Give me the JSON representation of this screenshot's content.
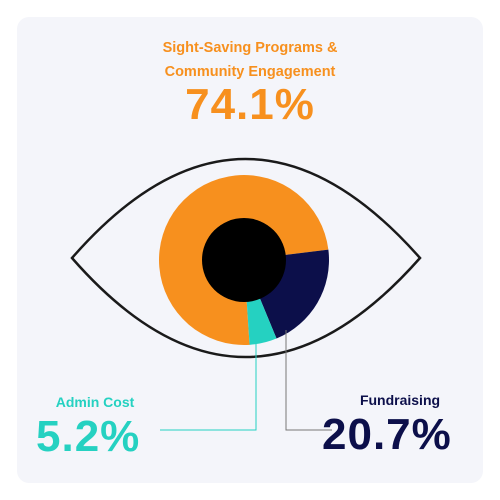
{
  "chart_data": {
    "type": "pie",
    "categories": [
      "Sight-Saving Programs & Community Engagement",
      "Fundraising",
      "Admin Cost"
    ],
    "values": [
      74.1,
      20.7,
      5.2
    ],
    "value_labels": [
      "74.1%",
      "20.7%",
      "5.2%"
    ],
    "colors": [
      "#f7901e",
      "#0c0f4a",
      "#25d1c1"
    ],
    "title": "",
    "label_lines": [
      "Sight-Saving Programs &",
      "Community Engagement"
    ]
  },
  "colors": {
    "card_background": "#f4f5fa",
    "eye_outline": "#1a1a1a",
    "pupil": "#000000"
  }
}
